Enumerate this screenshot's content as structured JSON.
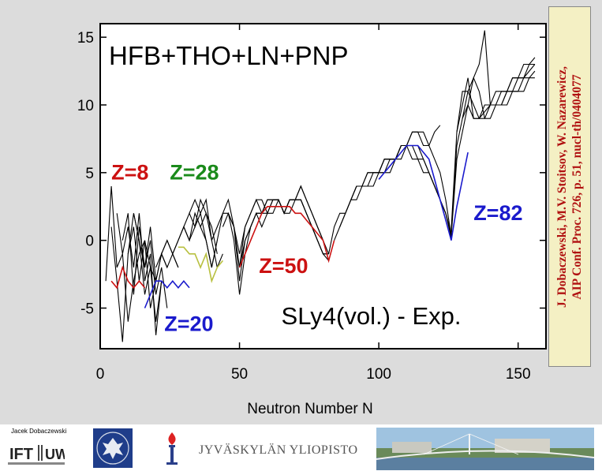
{
  "title": "HFB+THO+LN+PNP",
  "subtitle_box": "SLy4(vol.) - Exp.",
  "citation": {
    "line1": "J. Dobaczewski, M.V. Stoitsov, W. Nazarewicz,",
    "line2": "AIP Conf. Proc. 726, p. 51, nucl-th/0404077"
  },
  "footer": {
    "author": "Jacek Dobaczewski",
    "ift_logo_text": "IFT UW",
    "university": "JYVÄSKYLÄN YLIOPISTO"
  },
  "colors": {
    "red": "#cc1111",
    "green": "#1a8a1a",
    "blue": "#1a1acc",
    "yellow_green": "#b8c040",
    "citation_bg": "#f4f0c4",
    "slide_bg": "#dcdcdc"
  },
  "chart_data": {
    "type": "line",
    "title": "HFB+THO+LN+PNP",
    "xlabel": "Neutron Number N",
    "ylabel": "",
    "xlim": [
      0,
      160
    ],
    "ylim": [
      -8,
      16
    ],
    "xticks": [
      0,
      50,
      100,
      150
    ],
    "yticks": [
      -5,
      0,
      5,
      10,
      15
    ],
    "annotations": [
      {
        "text": "Z=8",
        "color": "#cc1111",
        "x": 4,
        "y": 4.5
      },
      {
        "text": "Z=28",
        "color": "#1a8a1a",
        "x": 25,
        "y": 4.5
      },
      {
        "text": "Z=20",
        "color": "#1a1acc",
        "x": 23,
        "y": -6.7
      },
      {
        "text": "Z=50",
        "color": "#cc1111",
        "x": 57,
        "y": -2.4
      },
      {
        "text": "Z=82",
        "color": "#1a1acc",
        "x": 134,
        "y": 1.5
      },
      {
        "text": "SLy4(vol.) - Exp.",
        "color": "#000000",
        "x": 65,
        "y": -6.2
      }
    ],
    "series": [
      {
        "color": "#000000",
        "x": [
          2,
          4,
          6,
          8,
          10,
          12,
          14,
          16,
          18,
          20
        ],
        "values": [
          -3,
          4,
          -2,
          -1,
          -6,
          -3,
          -1,
          0,
          -5,
          -3
        ]
      },
      {
        "color": "#000000",
        "x": [
          4,
          6,
          8,
          10,
          12,
          14,
          16,
          18,
          20,
          22
        ],
        "values": [
          1,
          -3,
          -7.5,
          -1,
          2,
          0,
          -4,
          -2,
          -6,
          -3
        ]
      },
      {
        "color": "#000000",
        "x": [
          6,
          8,
          10,
          12,
          14,
          16,
          18,
          20,
          22
        ],
        "values": [
          2,
          -1,
          1,
          -2,
          2,
          -3,
          -1,
          -7,
          -3
        ]
      },
      {
        "color": "#000000",
        "x": [
          8,
          10,
          12,
          14,
          16,
          18,
          20,
          22,
          24
        ],
        "values": [
          0,
          2,
          -4,
          1,
          -2,
          0,
          -4,
          -2,
          -5
        ]
      },
      {
        "color": "#000000",
        "x": [
          10,
          12,
          14,
          16,
          18,
          20,
          22,
          24
        ],
        "values": [
          -1,
          1,
          -3,
          0,
          -2,
          -3,
          -1,
          -2
        ]
      },
      {
        "color": "#000000",
        "x": [
          12,
          14,
          16,
          18,
          20,
          22,
          24,
          26,
          28
        ],
        "values": [
          2,
          0,
          -2,
          1,
          -3,
          -1,
          -2,
          -1,
          -2
        ]
      },
      {
        "color": "#000000",
        "x": [
          20,
          22,
          24,
          26,
          28
        ],
        "values": [
          -2,
          -1,
          0,
          -1,
          -2
        ]
      },
      {
        "color": "#000000",
        "x": [
          22,
          24,
          26,
          28,
          30,
          32,
          34,
          36,
          38,
          40,
          42
        ],
        "values": [
          -1,
          0,
          -1,
          0,
          1,
          0,
          1,
          2,
          0,
          -2,
          0
        ]
      },
      {
        "color": "#000000",
        "x": [
          26,
          28,
          30,
          32,
          34,
          36,
          38,
          40,
          42,
          44
        ],
        "values": [
          -1,
          0,
          1,
          0,
          2,
          1,
          2,
          0,
          -2,
          -1
        ]
      },
      {
        "color": "#000000",
        "x": [
          30,
          32,
          34,
          36,
          38,
          40,
          42
        ],
        "values": [
          1,
          2,
          1,
          3,
          2,
          1,
          -1
        ]
      },
      {
        "color": "#000000",
        "x": [
          32,
          34,
          36,
          38,
          40
        ],
        "values": [
          2,
          3,
          2,
          3,
          0
        ]
      },
      {
        "color": "#000000",
        "x": [
          36,
          38,
          40,
          42,
          44,
          46,
          48,
          50,
          52,
          54,
          56,
          58,
          60,
          62,
          64,
          66,
          68,
          70,
          72,
          74,
          76,
          78,
          80,
          82
        ],
        "values": [
          1,
          0,
          -2,
          0,
          2,
          3,
          1,
          -3,
          0,
          1,
          2,
          1,
          2,
          2,
          3,
          2,
          2,
          3,
          3,
          2,
          1,
          0,
          -1,
          -1
        ]
      },
      {
        "color": "#000000",
        "x": [
          40,
          42,
          44,
          46,
          48,
          50,
          52,
          54,
          56,
          58,
          60,
          62,
          64,
          66,
          68,
          70,
          72,
          74,
          76,
          78,
          80,
          82
        ],
        "values": [
          0,
          1,
          2,
          2,
          0,
          -4,
          -1,
          1,
          2,
          2,
          2,
          3,
          3,
          2,
          3,
          3,
          3,
          2,
          1,
          0,
          -1,
          -1.5
        ]
      },
      {
        "color": "#000000",
        "x": [
          44,
          46,
          48,
          50,
          52,
          54,
          56,
          58,
          60,
          62,
          64,
          66,
          68,
          70,
          72,
          74,
          76,
          78,
          80,
          82
        ],
        "values": [
          1,
          2,
          1,
          -2,
          0,
          1,
          2,
          2,
          3,
          3,
          3,
          2,
          3,
          3,
          4,
          3,
          2,
          1,
          0,
          -1
        ]
      },
      {
        "color": "#000000",
        "x": [
          46,
          48,
          50,
          52,
          54,
          56,
          58,
          60,
          62,
          64,
          66,
          68,
          70,
          72,
          74,
          76,
          78,
          80,
          82
        ],
        "values": [
          2,
          1,
          -1,
          1,
          2,
          3,
          3,
          2,
          3,
          3,
          2,
          3,
          3,
          4,
          3,
          2,
          1,
          0,
          -1.5
        ]
      },
      {
        "color": "#000000",
        "x": [
          50,
          52,
          54,
          56,
          58,
          60,
          62,
          64,
          66,
          68,
          70,
          72,
          74,
          76,
          78,
          80,
          82
        ],
        "values": [
          -2,
          1,
          2,
          3,
          2,
          3,
          3,
          3,
          2,
          3,
          3,
          3,
          2,
          1,
          0,
          -1,
          -1
        ]
      },
      {
        "color": "#000000",
        "x": [
          82,
          84,
          86,
          88,
          90,
          92,
          94,
          96,
          98,
          100,
          102,
          104,
          106,
          108,
          110,
          112,
          114,
          116,
          118,
          120,
          122,
          124,
          126
        ],
        "values": [
          -1,
          1,
          2,
          2,
          3,
          3,
          4,
          4,
          4,
          5,
          5,
          5,
          6,
          6,
          7,
          7,
          7,
          6,
          5,
          4,
          3,
          2,
          0.5
        ]
      },
      {
        "color": "#000000",
        "x": [
          84,
          86,
          88,
          90,
          92,
          94,
          96,
          98,
          100,
          102,
          104,
          106,
          108,
          110,
          112,
          114,
          116,
          118,
          120,
          122,
          124,
          126
        ],
        "values": [
          0,
          1,
          2,
          3,
          4,
          4,
          5,
          5,
          5,
          6,
          6,
          6,
          7,
          7,
          7,
          6,
          6,
          5,
          4,
          3,
          2,
          0.2
        ]
      },
      {
        "color": "#000000",
        "x": [
          86,
          88,
          90,
          92,
          94,
          96,
          98,
          100,
          102,
          104,
          106,
          108,
          110,
          112,
          114,
          116,
          118,
          120,
          122,
          124,
          126
        ],
        "values": [
          1,
          2,
          3,
          4,
          4,
          4,
          5,
          5,
          6,
          6,
          6,
          7,
          7,
          6,
          6,
          5,
          5,
          4,
          3,
          2,
          0.5
        ]
      },
      {
        "color": "#000000",
        "x": [
          90,
          92,
          94,
          96,
          98,
          100,
          102,
          104,
          106,
          108,
          110,
          112,
          114,
          116,
          118,
          120,
          122
        ],
        "values": [
          3,
          4,
          4,
          5,
          5,
          5,
          6,
          6,
          6,
          7,
          7,
          8,
          8,
          7,
          7,
          8,
          8.5
        ]
      },
      {
        "color": "#000000",
        "x": [
          100,
          102,
          104,
          106,
          108,
          110,
          112,
          114,
          116,
          118,
          120,
          122,
          124,
          126
        ],
        "values": [
          5,
          5,
          6,
          6,
          7,
          7,
          8,
          8,
          8,
          7,
          6,
          5,
          3,
          0.3
        ]
      },
      {
        "color": "#000000",
        "x": [
          126,
          128,
          130,
          132,
          134,
          136,
          138,
          140,
          142,
          144,
          146,
          148,
          150,
          152,
          154,
          156
        ],
        "values": [
          0.3,
          6,
          8,
          10,
          12,
          13,
          15.5,
          10,
          11,
          11,
          11,
          12,
          12,
          13,
          13,
          13.5
        ]
      },
      {
        "color": "#000000",
        "x": [
          126,
          128,
          130,
          132,
          134,
          136,
          138,
          140,
          142,
          144,
          146,
          148,
          150,
          152,
          154,
          156
        ],
        "values": [
          0.5,
          7,
          9,
          11,
          12,
          11,
          9,
          9,
          10,
          10,
          11,
          11,
          12,
          12,
          13,
          13
        ]
      },
      {
        "color": "#000000",
        "x": [
          126,
          128,
          130,
          132,
          134,
          136,
          138,
          140,
          142,
          144,
          146,
          148,
          150,
          152,
          154,
          156
        ],
        "values": [
          0.8,
          8,
          10,
          12,
          9,
          9,
          9.5,
          10,
          10,
          11,
          11,
          12,
          12,
          12,
          12.5,
          13
        ]
      },
      {
        "color": "#000000",
        "x": [
          128,
          130,
          132,
          134,
          136,
          138,
          140,
          142,
          144,
          146,
          148,
          150,
          152,
          154,
          156
        ],
        "values": [
          8,
          11,
          11,
          10,
          9,
          9,
          10,
          10,
          10,
          11,
          11,
          11,
          12,
          12,
          12.5
        ]
      },
      {
        "color": "#000000",
        "x": [
          130,
          132,
          134,
          136,
          138,
          140,
          142,
          144,
          146,
          148,
          150,
          152,
          154,
          156
        ],
        "values": [
          9,
          10,
          9,
          9,
          10,
          10,
          10,
          10,
          10,
          11,
          11,
          11,
          12,
          12
        ]
      },
      {
        "color": "#cc1111",
        "x": [
          4,
          6,
          8,
          10,
          12,
          14,
          16
        ],
        "values": [
          -3,
          -3.5,
          -2,
          -3,
          -3.5,
          -3,
          -3.5
        ]
      },
      {
        "color": "#b8c040",
        "x": [
          28,
          30,
          32,
          34,
          36,
          38,
          40,
          42,
          44
        ],
        "values": [
          -0.5,
          -0.5,
          -1,
          -1,
          -2,
          -1,
          -3,
          -2,
          -1.5
        ]
      },
      {
        "color": "#1a1acc",
        "x": [
          16,
          18,
          20,
          22,
          24,
          26,
          28,
          30,
          32
        ],
        "values": [
          -5,
          -4,
          -3,
          -3,
          -3.5,
          -3,
          -3.5,
          -3,
          -3.5
        ]
      },
      {
        "color": "#cc1111",
        "x": [
          50,
          52,
          54,
          56,
          58,
          60,
          62,
          64,
          66,
          68,
          70,
          72,
          74,
          76,
          78,
          80,
          82,
          84
        ],
        "values": [
          -2,
          -1,
          0,
          1,
          2,
          2.5,
          2.5,
          2.5,
          2.5,
          2.5,
          2,
          2,
          1.5,
          1,
          0.5,
          0,
          -1.5,
          0
        ]
      },
      {
        "color": "#1a1acc",
        "x": [
          100,
          102,
          104,
          106,
          108,
          110,
          112,
          114,
          116,
          118,
          120,
          122,
          124,
          126,
          128,
          130,
          132
        ],
        "values": [
          4.5,
          5,
          5.5,
          6,
          6.5,
          7,
          7,
          7,
          6.5,
          6,
          4.5,
          3,
          1.5,
          0,
          2.5,
          4.5,
          6.5
        ]
      }
    ]
  }
}
